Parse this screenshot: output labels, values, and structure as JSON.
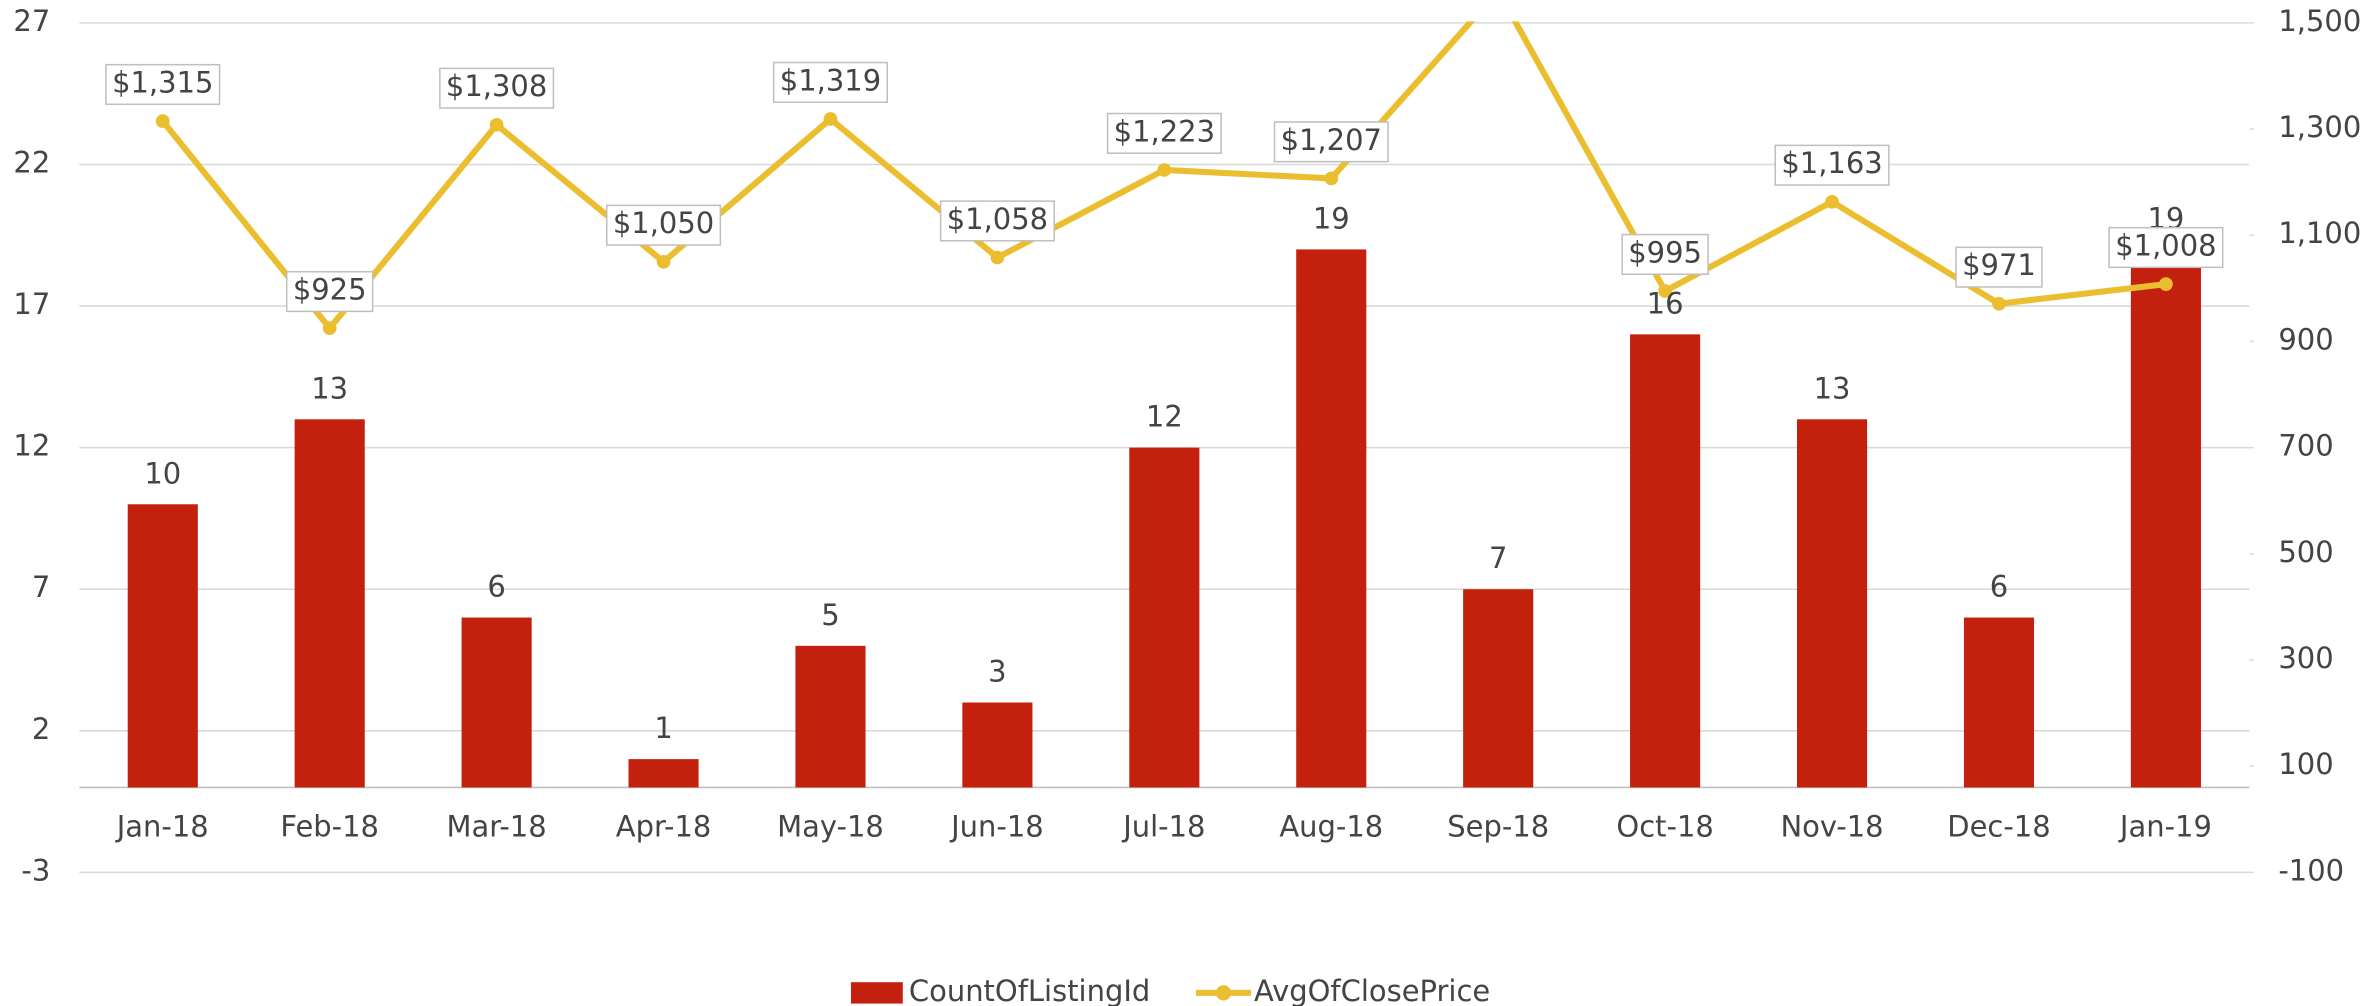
{
  "chart_data": {
    "type": "bar_line",
    "categories": [
      "Jan-18",
      "Feb-18",
      "Mar-18",
      "Apr-18",
      "May-18",
      "Jun-18",
      "Jul-18",
      "Aug-18",
      "Sep-18",
      "Oct-18",
      "Nov-18",
      "Dec-18",
      "Jan-19"
    ],
    "series": [
      {
        "name": "CountOfListingId",
        "type": "bar",
        "color": "#c3200e",
        "values": [
          10,
          13,
          6,
          1,
          5,
          3,
          12,
          19,
          7,
          16,
          13,
          6,
          19
        ]
      },
      {
        "name": "AvgOfClosePrice",
        "type": "line",
        "axis": "y2",
        "color": "#ebbe2f",
        "values": [
          1315,
          925,
          1308,
          1050,
          1319,
          1058,
          1223,
          1207,
          1560,
          995,
          1163,
          971,
          1008
        ],
        "value_labels": [
          "$1,315",
          "$925",
          "$1,308",
          "$1,050",
          "$1,319",
          "$1,058",
          "$1,223",
          "$1,207",
          null,
          "$995",
          "$1,163",
          "$971",
          "$1,008"
        ]
      }
    ],
    "ylim": [
      -3,
      27
    ],
    "yticks": [
      -3,
      2,
      7,
      12,
      17,
      22,
      27
    ],
    "y2lim": [
      -100,
      1500
    ],
    "y2ticks": [
      -100,
      100,
      300,
      500,
      700,
      900,
      {
        "value": 1100,
        "label": "1,100"
      },
      {
        "value": 1300,
        "label": "1,300"
      },
      {
        "value": 1500,
        "label": "1,500"
      }
    ],
    "grid": true,
    "legend": "bottom"
  }
}
